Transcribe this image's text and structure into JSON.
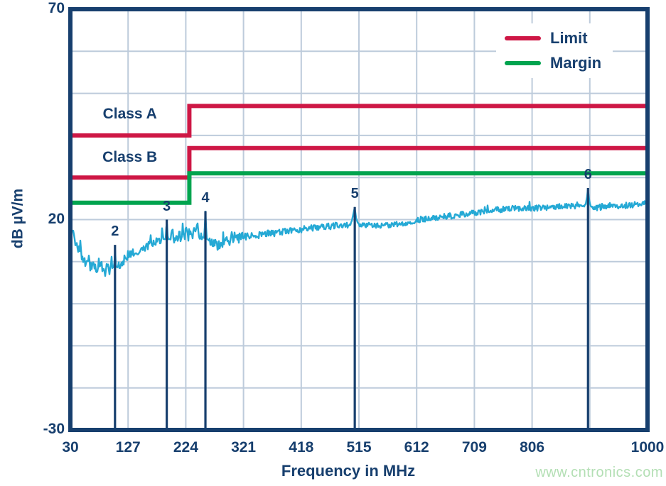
{
  "watermark": {
    "text": "www.cntronics.com",
    "color": "#b3dfb4"
  },
  "chart_data": {
    "type": "line",
    "title": "",
    "xlabel": "Frequency in MHz",
    "ylabel": "dB µV/m",
    "x_range": [
      30,
      1000
    ],
    "y_range": [
      -30,
      70
    ],
    "x_ticks": [
      {
        "value": 30,
        "label": "30"
      },
      {
        "value": 127,
        "label": "127"
      },
      {
        "value": 224,
        "label": "224"
      },
      {
        "value": 321,
        "label": "321"
      },
      {
        "value": 418,
        "label": "418"
      },
      {
        "value": 515,
        "label": "515"
      },
      {
        "value": 612,
        "label": "612"
      },
      {
        "value": 709,
        "label": "709"
      },
      {
        "value": 806,
        "label": "806"
      },
      {
        "value": 903,
        "label": ""
      },
      {
        "value": 1000,
        "label": "1000"
      }
    ],
    "y_ticks": [
      {
        "value": 70,
        "label": "70"
      },
      {
        "value": 20,
        "label": "20"
      },
      {
        "value": -30,
        "label": "-30"
      }
    ],
    "grid": {
      "x_step_mhz": 97,
      "y_step_db": 10,
      "on": true
    },
    "legend": {
      "position": "top-right",
      "entries": [
        {
          "label": "Limit",
          "color": "#ce1745"
        },
        {
          "label": "Margin",
          "color": "#00a44f"
        }
      ]
    },
    "limit_lines": [
      {
        "name": "class-a-limit",
        "label": "Class A",
        "color": "#ce1745",
        "points": [
          [
            30,
            40
          ],
          [
            230,
            40
          ],
          [
            230,
            47
          ],
          [
            1000,
            47
          ]
        ]
      },
      {
        "name": "class-b-limit",
        "label": "Class B",
        "color": "#ce1745",
        "points": [
          [
            30,
            30
          ],
          [
            230,
            30
          ],
          [
            230,
            37
          ],
          [
            1000,
            37
          ]
        ]
      },
      {
        "name": "margin",
        "label": "",
        "color": "#00a44f",
        "points": [
          [
            30,
            24
          ],
          [
            230,
            24
          ],
          [
            230,
            31
          ],
          [
            1000,
            31
          ]
        ]
      }
    ],
    "markers": [
      {
        "label": "2",
        "mhz": 105,
        "db": 14
      },
      {
        "label": "3",
        "mhz": 192,
        "db": 20
      },
      {
        "label": "4",
        "mhz": 257,
        "db": 22
      },
      {
        "label": "5",
        "mhz": 508,
        "db": 23
      },
      {
        "label": "6",
        "mhz": 900,
        "db": 27.5
      }
    ],
    "trace": {
      "name": "measured-radiated-emissions",
      "color": "#25a9d5",
      "points": [
        [
          30,
          18.6
        ],
        [
          34,
          16.8
        ],
        [
          38,
          15.0
        ],
        [
          42,
          13.5
        ],
        [
          47,
          12.2
        ],
        [
          52,
          10.2
        ],
        [
          55,
          8.8
        ],
        [
          58,
          9.6
        ],
        [
          60,
          9.2
        ],
        [
          62,
          12.0
        ],
        [
          63,
          9.0
        ],
        [
          66,
          8.6
        ],
        [
          69,
          9.4
        ],
        [
          72,
          8.4
        ],
        [
          75,
          8.0
        ],
        [
          78,
          9.8
        ],
        [
          80,
          8.4
        ],
        [
          82,
          12.0
        ],
        [
          83,
          8.6
        ],
        [
          86,
          8.0
        ],
        [
          89,
          7.6
        ],
        [
          92,
          8.8
        ],
        [
          95,
          7.8
        ],
        [
          98,
          8.2
        ],
        [
          99,
          12.3
        ],
        [
          100,
          8.4
        ],
        [
          103,
          8.8
        ],
        [
          103.8,
          9.0
        ],
        [
          105,
          13.5
        ],
        [
          106.5,
          9.0
        ],
        [
          109,
          8.6
        ],
        [
          112,
          9.2
        ],
        [
          116,
          9.8
        ],
        [
          120,
          10.4
        ],
        [
          127,
          11.5
        ],
        [
          134,
          12.1
        ],
        [
          141,
          12.5
        ],
        [
          148,
          12.8
        ],
        [
          155,
          13.3
        ],
        [
          162,
          13.9
        ],
        [
          170,
          14.7
        ],
        [
          177,
          15.1
        ],
        [
          183,
          15.3
        ],
        [
          184.5,
          18.3
        ],
        [
          186,
          15.4
        ],
        [
          190,
          15.3
        ],
        [
          192,
          20.0
        ],
        [
          194,
          15.3
        ],
        [
          198,
          15.4
        ],
        [
          202,
          17.8
        ],
        [
          204,
          15.5
        ],
        [
          208,
          15.6
        ],
        [
          211,
          15.4
        ],
        [
          213,
          18.3
        ],
        [
          215,
          15.5
        ],
        [
          219,
          15.7
        ],
        [
          222,
          16.0
        ],
        [
          225,
          19.0
        ],
        [
          227,
          16.0
        ],
        [
          231,
          16.2
        ],
        [
          235,
          16.0
        ],
        [
          238,
          17.8
        ],
        [
          240,
          15.9
        ],
        [
          244,
          18.3
        ],
        [
          246,
          15.8
        ],
        [
          250,
          16.0
        ],
        [
          255,
          15.6
        ],
        [
          257,
          22.0
        ],
        [
          259,
          15.5
        ],
        [
          263,
          15.0
        ],
        [
          268,
          14.4
        ],
        [
          273,
          14.1
        ],
        [
          278,
          14.0
        ],
        [
          284,
          14.3
        ],
        [
          290,
          14.7
        ],
        [
          298,
          15.0
        ],
        [
          306,
          15.2
        ],
        [
          315,
          15.6
        ],
        [
          324,
          15.9
        ],
        [
          334,
          16.1
        ],
        [
          344,
          16.3
        ],
        [
          355,
          16.5
        ],
        [
          366,
          16.7
        ],
        [
          378,
          16.9
        ],
        [
          390,
          17.1
        ],
        [
          402,
          17.4
        ],
        [
          413,
          17.6
        ],
        [
          425,
          17.9
        ],
        [
          437,
          18.1
        ],
        [
          449,
          18.3
        ],
        [
          461,
          18.4
        ],
        [
          473,
          18.5
        ],
        [
          485,
          18.6
        ],
        [
          495,
          18.6
        ],
        [
          502,
          19.0
        ],
        [
          505,
          21.0
        ],
        [
          508,
          22.9
        ],
        [
          510,
          20.5
        ],
        [
          513,
          19.2
        ],
        [
          517,
          18.9
        ],
        [
          525,
          18.7
        ],
        [
          535,
          18.7
        ],
        [
          545,
          18.6
        ],
        [
          557,
          18.6
        ],
        [
          568,
          18.7
        ],
        [
          580,
          18.9
        ],
        [
          593,
          19.2
        ],
        [
          605,
          19.6
        ],
        [
          617,
          20.0
        ],
        [
          628,
          20.2
        ],
        [
          640,
          20.4
        ],
        [
          652,
          20.6
        ],
        [
          664,
          20.8
        ],
        [
          676,
          21.0
        ],
        [
          688,
          21.2
        ],
        [
          700,
          21.4
        ],
        [
          712,
          21.7
        ],
        [
          724,
          21.9
        ],
        [
          736,
          22.1
        ],
        [
          748,
          22.3
        ],
        [
          760,
          22.5
        ],
        [
          772,
          22.6
        ],
        [
          784,
          22.7
        ],
        [
          796,
          22.7
        ],
        [
          808,
          22.6
        ],
        [
          820,
          22.8
        ],
        [
          832,
          22.9
        ],
        [
          844,
          23.0
        ],
        [
          856,
          23.1
        ],
        [
          868,
          23.1
        ],
        [
          879,
          23.2
        ],
        [
          888,
          23.3
        ],
        [
          896,
          23.6
        ],
        [
          898.5,
          25.5
        ],
        [
          900,
          27.5
        ],
        [
          901.5,
          25.0
        ],
        [
          904,
          23.3
        ],
        [
          908,
          22.7
        ],
        [
          913,
          22.8
        ],
        [
          920,
          22.9
        ],
        [
          930,
          23.0
        ],
        [
          941,
          23.1
        ],
        [
          953,
          23.2
        ],
        [
          965,
          23.4
        ],
        [
          978,
          23.6
        ],
        [
          990,
          23.8
        ],
        [
          1000,
          23.9
        ]
      ]
    },
    "colors": {
      "axis": "#173f6e",
      "grid": "#bdcbdb",
      "text": "#173f6e",
      "limit": "#ce1745",
      "margin": "#00a44f",
      "trace": "#25a9d5"
    }
  }
}
